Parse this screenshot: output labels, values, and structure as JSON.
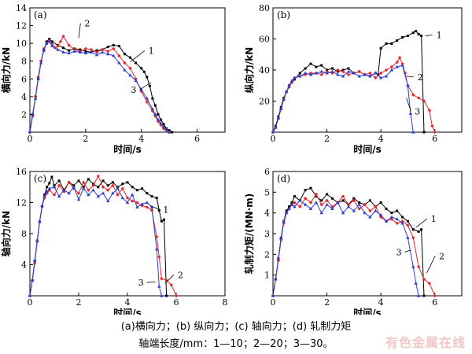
{
  "captions": {
    "line1": "(a)横向力；(b) 纵向力；(c) 轴向力；(d) 轧制力矩",
    "line2": "轴端长度/mm：1—10；2—20；3—30。"
  },
  "watermark": "有色金属在线",
  "colors": {
    "series1": "#000000",
    "series2": "#e8262b",
    "series3": "#2b3fd4"
  },
  "chart_data": [
    {
      "id": "a",
      "type": "line",
      "panel_label": "(a)",
      "xlabel": "时间/s",
      "ylabel": "横向力/kN",
      "xlim": [
        0,
        7
      ],
      "ylim": [
        0,
        14
      ],
      "xticks": [
        0,
        2,
        4,
        6
      ],
      "yticks": [
        2,
        4,
        6,
        8,
        10,
        12,
        14
      ],
      "series": [
        {
          "name": "1",
          "marker": "square",
          "x": [
            0,
            0.1,
            0.2,
            0.3,
            0.4,
            0.5,
            0.6,
            0.7,
            0.8,
            1.0,
            1.2,
            1.4,
            1.6,
            1.8,
            2.0,
            2.2,
            2.4,
            2.6,
            2.8,
            3.0,
            3.2,
            3.4,
            3.6,
            3.8,
            4.0,
            4.1,
            4.2,
            4.3,
            4.4,
            4.5,
            4.6,
            4.7,
            4.8,
            4.9,
            5.0,
            5.1
          ],
          "y": [
            0,
            2,
            4,
            6,
            8,
            9.2,
            10.2,
            10.5,
            10.2,
            9.8,
            9.5,
            9.2,
            9.4,
            9.3,
            9.1,
            9.0,
            9.2,
            9.3,
            9.6,
            9.8,
            9.7,
            8.8,
            8.4,
            7.8,
            7.2,
            6.8,
            6.2,
            5.2,
            3.8,
            3.0,
            2.0,
            1.4,
            0.9,
            0.4,
            0.2,
            0
          ]
        },
        {
          "name": "2",
          "marker": "diamond",
          "x": [
            0,
            0.1,
            0.2,
            0.3,
            0.4,
            0.5,
            0.6,
            0.7,
            0.8,
            0.9,
            1.0,
            1.1,
            1.2,
            1.4,
            1.6,
            1.8,
            2.0,
            2.2,
            2.4,
            2.6,
            2.8,
            3.0,
            3.2,
            3.4,
            3.6,
            3.8,
            4.0,
            4.2,
            4.4,
            4.5,
            4.6,
            4.7,
            4.8,
            4.9,
            5.0
          ],
          "y": [
            0,
            1.8,
            4,
            6.2,
            8,
            9.4,
            10.0,
            10.3,
            9.9,
            9.5,
            9.7,
            10.2,
            10.8,
            9.8,
            9.3,
            9.1,
            9.4,
            9.3,
            9.0,
            9.3,
            9.1,
            9.4,
            8.6,
            7.8,
            7.2,
            6.0,
            4.6,
            3.4,
            2.4,
            1.8,
            1.2,
            0.8,
            0.4,
            0.2,
            0
          ]
        },
        {
          "name": "3",
          "marker": "triangle",
          "x": [
            0,
            0.1,
            0.2,
            0.3,
            0.4,
            0.5,
            0.6,
            0.7,
            0.8,
            1.0,
            1.2,
            1.4,
            1.6,
            1.8,
            2.0,
            2.2,
            2.4,
            2.6,
            2.8,
            3.0,
            3.2,
            3.4,
            3.6,
            3.8,
            4.0,
            4.2,
            4.4,
            4.5,
            4.6,
            4.7,
            4.8,
            4.9,
            5.0
          ],
          "y": [
            0,
            2,
            3.8,
            6,
            7.8,
            9.3,
            10.0,
            10.2,
            9.7,
            9.3,
            9.0,
            8.9,
            9.1,
            9.0,
            8.9,
            9.0,
            8.7,
            9.0,
            8.8,
            8.6,
            7.8,
            7.0,
            6.4,
            5.8,
            4.8,
            3.8,
            2.6,
            2.0,
            1.4,
            1.0,
            0.6,
            0.3,
            0
          ]
        }
      ],
      "annotations": [
        {
          "text": "1",
          "series": "1"
        },
        {
          "text": "2",
          "series": "2"
        },
        {
          "text": "3",
          "series": "3"
        }
      ]
    },
    {
      "id": "b",
      "type": "line",
      "panel_label": "(b)",
      "xlabel": "时间/s",
      "ylabel": "纵向力/kN",
      "xlim": [
        0,
        7
      ],
      "ylim": [
        0,
        80
      ],
      "xticks": [
        0,
        2,
        4,
        6
      ],
      "yticks": [
        20,
        40,
        60,
        80
      ],
      "series": [
        {
          "name": "1",
          "marker": "square",
          "x": [
            0,
            0.1,
            0.2,
            0.3,
            0.4,
            0.5,
            0.6,
            0.7,
            0.8,
            1.0,
            1.2,
            1.4,
            1.6,
            1.8,
            2.0,
            2.2,
            2.4,
            2.6,
            2.8,
            3.0,
            3.2,
            3.4,
            3.6,
            3.8,
            3.9,
            4.0,
            4.2,
            4.4,
            4.6,
            4.8,
            5.0,
            5.2,
            5.3,
            5.4,
            5.5,
            5.6
          ],
          "y": [
            0,
            4,
            10,
            16,
            22,
            26,
            30,
            32,
            34,
            38,
            41,
            44,
            42,
            43,
            40,
            41,
            39,
            40,
            41,
            38,
            39,
            37,
            36,
            38,
            37,
            54,
            57,
            57,
            59,
            61,
            62,
            64,
            65,
            63,
            62,
            0
          ]
        },
        {
          "name": "2",
          "marker": "diamond",
          "x": [
            0,
            0.1,
            0.2,
            0.3,
            0.4,
            0.5,
            0.6,
            0.7,
            0.8,
            1.0,
            1.2,
            1.4,
            1.6,
            1.8,
            2.0,
            2.2,
            2.4,
            2.6,
            2.8,
            3.0,
            3.2,
            3.4,
            3.6,
            3.8,
            4.0,
            4.2,
            4.4,
            4.6,
            4.7,
            4.8,
            4.9,
            5.0,
            5.2,
            5.4,
            5.6,
            5.8,
            5.9,
            6.0
          ],
          "y": [
            0,
            3,
            9,
            15,
            21,
            26,
            29,
            32,
            35,
            36,
            37,
            38,
            38,
            37,
            39,
            38,
            40,
            39,
            37,
            38,
            39,
            37,
            38,
            35,
            38,
            40,
            42,
            45,
            48,
            44,
            38,
            30,
            24,
            22,
            20,
            14,
            4,
            0
          ]
        },
        {
          "name": "3",
          "marker": "triangle",
          "x": [
            0,
            0.1,
            0.2,
            0.3,
            0.4,
            0.5,
            0.6,
            0.7,
            0.8,
            1.0,
            1.2,
            1.4,
            1.6,
            1.8,
            2.0,
            2.2,
            2.4,
            2.6,
            2.8,
            3.0,
            3.2,
            3.4,
            3.6,
            3.8,
            4.0,
            4.2,
            4.4,
            4.6,
            4.8,
            5.0,
            5.1,
            5.2
          ],
          "y": [
            0,
            3,
            9,
            15,
            21,
            26,
            30,
            33,
            35,
            36,
            38,
            37,
            38,
            39,
            38,
            39,
            37,
            36,
            39,
            38,
            36,
            37,
            36,
            38,
            35,
            36,
            40,
            42,
            43,
            30,
            12,
            0
          ]
        }
      ],
      "annotations": [
        {
          "text": "1",
          "series": "1"
        },
        {
          "text": "2",
          "series": "2"
        },
        {
          "text": "3",
          "series": "3"
        }
      ]
    },
    {
      "id": "c",
      "type": "line",
      "panel_label": "(c)",
      "xlabel": "时间/s",
      "ylabel": "轴向力/kN",
      "xlim": [
        0,
        8
      ],
      "ylim": [
        0,
        16
      ],
      "xticks": [
        0,
        2,
        4,
        6,
        8
      ],
      "yticks": [
        4,
        8,
        12,
        16
      ],
      "series": [
        {
          "name": "1",
          "marker": "square",
          "x": [
            0,
            0.1,
            0.2,
            0.3,
            0.4,
            0.5,
            0.6,
            0.7,
            0.8,
            0.9,
            1.0,
            1.2,
            1.4,
            1.6,
            1.8,
            2.0,
            2.2,
            2.4,
            2.6,
            2.8,
            3.0,
            3.2,
            3.4,
            3.6,
            3.8,
            4.0,
            4.2,
            4.4,
            4.6,
            4.8,
            5.0,
            5.2,
            5.3,
            5.4,
            5.5,
            5.6
          ],
          "y": [
            0,
            2,
            4.5,
            7,
            9.5,
            11.5,
            13,
            14,
            14.5,
            15.3,
            14.2,
            14.8,
            13.6,
            14.6,
            14.2,
            14.8,
            14.0,
            15.0,
            14.4,
            14.0,
            14.8,
            14.2,
            14.6,
            14.0,
            14.4,
            14.6,
            14.0,
            13.6,
            13.8,
            13.2,
            12.8,
            12.6,
            11.0,
            9.6,
            9.8,
            0
          ]
        },
        {
          "name": "2",
          "marker": "diamond",
          "x": [
            0,
            0.1,
            0.2,
            0.3,
            0.4,
            0.5,
            0.6,
            0.7,
            0.8,
            1.0,
            1.2,
            1.4,
            1.6,
            1.8,
            2.0,
            2.2,
            2.4,
            2.6,
            2.8,
            3.0,
            3.2,
            3.4,
            3.6,
            3.8,
            4.0,
            4.2,
            4.4,
            4.6,
            4.8,
            5.0,
            5.2,
            5.3,
            5.4,
            5.6,
            5.8,
            6.0
          ],
          "y": [
            0,
            2,
            4.2,
            7,
            9.5,
            11.5,
            12.6,
            13.2,
            13.6,
            13.0,
            14.2,
            13.4,
            14.6,
            13.8,
            13.2,
            14.6,
            13.6,
            14.2,
            15.4,
            14.0,
            13.6,
            14.2,
            13.0,
            13.8,
            12.6,
            12.2,
            12.0,
            11.6,
            11.4,
            11.0,
            7.6,
            5.0,
            2.2,
            2.0,
            1.4,
            0
          ]
        },
        {
          "name": "3",
          "marker": "triangle",
          "x": [
            0,
            0.1,
            0.2,
            0.3,
            0.4,
            0.5,
            0.6,
            0.7,
            0.8,
            1.0,
            1.2,
            1.4,
            1.6,
            1.8,
            2.0,
            2.2,
            2.4,
            2.6,
            2.8,
            3.0,
            3.2,
            3.4,
            3.6,
            3.8,
            4.0,
            4.2,
            4.4,
            4.6,
            4.8,
            5.0,
            5.2,
            5.3,
            5.4
          ],
          "y": [
            0,
            2,
            4.5,
            7.2,
            9.6,
            11.6,
            12.8,
            13.4,
            13.8,
            14.0,
            12.8,
            13.6,
            13.2,
            14.0,
            12.4,
            13.8,
            13.0,
            13.6,
            12.8,
            13.2,
            12.2,
            13.2,
            13.8,
            12.6,
            12.0,
            13.0,
            11.4,
            11.8,
            12.0,
            11.4,
            6.0,
            1.2,
            0
          ]
        }
      ],
      "annotations": [
        {
          "text": "1",
          "series": "1"
        },
        {
          "text": "2",
          "series": "2"
        },
        {
          "text": "3",
          "series": "3"
        }
      ]
    },
    {
      "id": "d",
      "type": "line",
      "panel_label": "(d)",
      "xlabel": "时间/s",
      "ylabel": "轧制力矩/(MN·m)",
      "xlim": [
        0,
        7
      ],
      "ylim": [
        0,
        6
      ],
      "xticks": [
        0,
        2,
        4,
        6
      ],
      "yticks": [
        1,
        2,
        3,
        4,
        5,
        6
      ],
      "series": [
        {
          "name": "1",
          "marker": "square",
          "x": [
            0,
            0.1,
            0.2,
            0.3,
            0.4,
            0.5,
            0.6,
            0.7,
            0.8,
            1.0,
            1.2,
            1.4,
            1.6,
            1.8,
            2.0,
            2.2,
            2.4,
            2.6,
            2.8,
            3.0,
            3.2,
            3.4,
            3.6,
            3.8,
            4.0,
            4.2,
            4.4,
            4.6,
            4.8,
            5.0,
            5.2,
            5.4,
            5.5,
            5.6
          ],
          "y": [
            0,
            0.8,
            1.8,
            2.8,
            3.6,
            4.1,
            4.3,
            4.5,
            4.8,
            4.6,
            5.1,
            5.2,
            4.8,
            4.6,
            4.9,
            4.7,
            4.5,
            4.6,
            4.4,
            4.7,
            4.5,
            4.4,
            4.6,
            4.3,
            4.5,
            4.2,
            4.0,
            4.1,
            3.8,
            3.6,
            3.2,
            3.1,
            3.2,
            0
          ]
        },
        {
          "name": "2",
          "marker": "diamond",
          "x": [
            0,
            0.1,
            0.2,
            0.3,
            0.4,
            0.5,
            0.6,
            0.7,
            0.8,
            1.0,
            1.2,
            1.4,
            1.6,
            1.8,
            2.0,
            2.2,
            2.4,
            2.6,
            2.8,
            3.0,
            3.2,
            3.4,
            3.6,
            3.8,
            4.0,
            4.2,
            4.4,
            4.6,
            4.8,
            5.0,
            5.2,
            5.4,
            5.6,
            5.8,
            6.0
          ],
          "y": [
            0,
            0.8,
            1.7,
            2.7,
            3.5,
            4.0,
            4.2,
            4.4,
            4.5,
            4.3,
            4.7,
            4.5,
            4.9,
            4.4,
            4.6,
            4.3,
            4.5,
            4.8,
            4.4,
            4.6,
            4.2,
            4.4,
            4.1,
            4.3,
            3.8,
            3.6,
            3.7,
            3.5,
            3.6,
            3.4,
            2.8,
            1.4,
            0.8,
            0.6,
            0
          ]
        },
        {
          "name": "3",
          "marker": "triangle",
          "x": [
            0,
            0.1,
            0.2,
            0.3,
            0.4,
            0.5,
            0.6,
            0.7,
            0.8,
            1.0,
            1.2,
            1.4,
            1.6,
            1.8,
            2.0,
            2.2,
            2.4,
            2.6,
            2.8,
            3.0,
            3.2,
            3.4,
            3.6,
            3.8,
            4.0,
            4.2,
            4.4,
            4.6,
            4.8,
            5.0,
            5.2,
            5.3,
            5.4
          ],
          "y": [
            0,
            0.8,
            1.8,
            2.8,
            3.6,
            4.0,
            4.2,
            4.4,
            4.3,
            4.6,
            4.4,
            4.2,
            4.5,
            4.0,
            4.4,
            4.2,
            4.5,
            4.0,
            4.3,
            4.1,
            4.4,
            4.0,
            3.8,
            4.1,
            3.9,
            3.6,
            3.8,
            3.7,
            3.5,
            2.8,
            1.4,
            0.6,
            0
          ]
        }
      ],
      "annotations": [
        {
          "text": "1",
          "series": "1"
        },
        {
          "text": "2",
          "series": "2"
        },
        {
          "text": "3",
          "series": "3"
        }
      ]
    }
  ]
}
